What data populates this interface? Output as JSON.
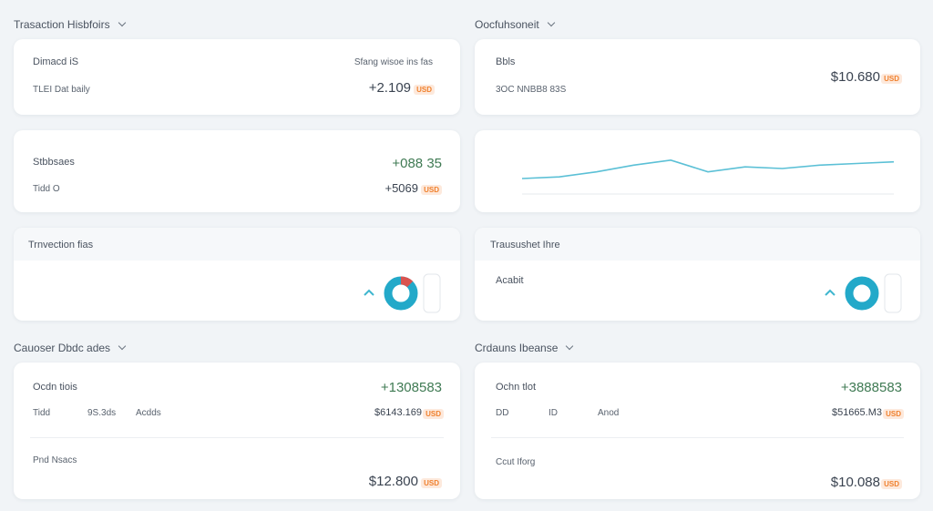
{
  "left": {
    "title": "Trasaction Hisbfoirs",
    "card1": {
      "label1": "Dimacd iS",
      "note": "Sfang wisoe ins fas",
      "label2": "TLEI Dat baily",
      "amount": "+2.109",
      "tag": "USD"
    },
    "card2": {
      "label1": "Stbbsaes",
      "amount1": "+088 35",
      "label2": "Tidd O",
      "amount2": "+5069",
      "tag": "USD"
    },
    "card3": {
      "title": "Trnvection fias"
    },
    "section2": "Cauoser Dbdc ades",
    "card4": {
      "label1": "Ocdn tiois",
      "amount1": "+1308583",
      "col1": "Tidd",
      "col2": "9S.3ds",
      "col3": "Acdds",
      "amount2": "$6143.169",
      "tag": "USD",
      "label3": "Pnd Nsacs",
      "amount3": "$12.800"
    }
  },
  "right": {
    "title": "Oocfuhsoneit",
    "card1": {
      "label1": "Bbls",
      "label2": "3OC NNBB8 83S",
      "amount": "$10.680",
      "tag": "USD"
    },
    "sparkline": {
      "values": [
        12,
        13,
        16,
        20,
        23,
        16,
        19,
        18,
        20,
        21,
        22
      ],
      "ylim": [
        0,
        30
      ],
      "color": "#5bc0d6"
    },
    "card3": {
      "title": "Trausushet Ihre",
      "label": "Acabit"
    },
    "section2": "Crdauns Ibeanse",
    "card4": {
      "label1": "Ochn tlot",
      "amount1": "+3888583",
      "col1": "DD",
      "col2": "ID",
      "col3": "Anod",
      "amount2": "$51665.M3",
      "tag": "USD",
      "label3": "Ccut Iforg",
      "amount3": "$10.088"
    }
  }
}
